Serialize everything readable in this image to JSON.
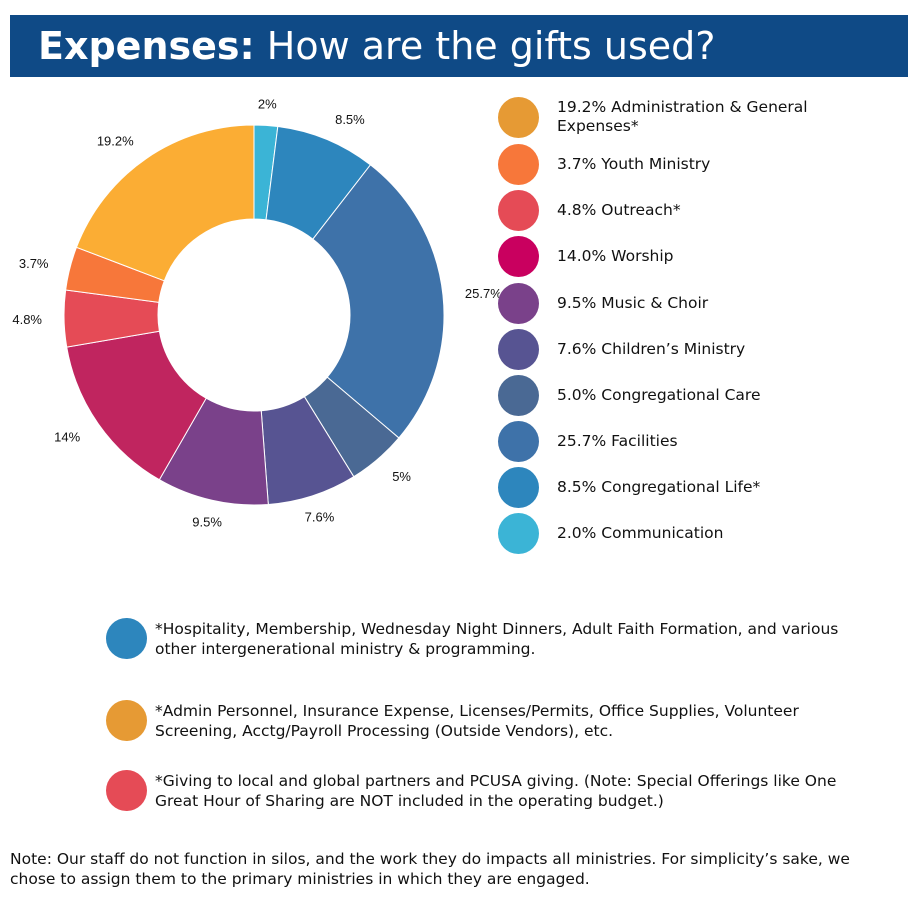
{
  "header": {
    "title_bold": "Expenses:",
    "title_rest": " How are the gifts used?",
    "background": "#0f4a86"
  },
  "chart_data": {
    "type": "pie",
    "donut": true,
    "start": "top",
    "direction": "clockwise",
    "slices": [
      {
        "label": "2.0% Communication",
        "value": 2.0,
        "data_label": "2%",
        "color": "#3bb4d6"
      },
      {
        "label": "8.5% Congregational Life*",
        "value": 8.5,
        "data_label": "8.5%",
        "color": "#2d86bd"
      },
      {
        "label": "25.7% Facilities",
        "value": 25.7,
        "data_label": "25.7%",
        "color": "#3e72a9"
      },
      {
        "label": "5.0% Congregational Care",
        "value": 5.0,
        "data_label": "5%",
        "color": "#4a6994"
      },
      {
        "label": "7.6% Children’s Ministry",
        "value": 7.6,
        "data_label": "7.6%",
        "color": "#575492"
      },
      {
        "label": "9.5% Music & Choir",
        "value": 9.5,
        "data_label": "9.5%",
        "color": "#7a418a"
      },
      {
        "label": "14.0% Worship",
        "value": 14.0,
        "data_label": "14%",
        "color": "#c0255f"
      },
      {
        "label": "4.8% Outreach*",
        "value": 4.8,
        "data_label": "4.8%",
        "color": "#e54b56"
      },
      {
        "label": "3.7% Youth Ministry",
        "value": 3.7,
        "data_label": "3.7%",
        "color": "#f7773a"
      },
      {
        "label": "19.2% Administration & General Expenses*",
        "value": 19.2,
        "data_label": "19.2%",
        "color": "#fbad34"
      }
    ]
  },
  "legend": [
    {
      "text": "19.2% Administration & General Expenses*",
      "color": "#e69a34"
    },
    {
      "text": "3.7% Youth Ministry",
      "color": "#f7773a"
    },
    {
      "text": "4.8% Outreach*",
      "color": "#e54b56"
    },
    {
      "text": "14.0% Worship",
      "color": "#c9005f"
    },
    {
      "text": "9.5% Music & Choir",
      "color": "#7a418a"
    },
    {
      "text": "7.6% Children’s Ministry",
      "color": "#575492"
    },
    {
      "text": "5.0% Congregational Care",
      "color": "#4a6994"
    },
    {
      "text": "25.7% Facilities",
      "color": "#3e72a9"
    },
    {
      "text": "8.5% Congregational Life*",
      "color": "#2d86bd"
    },
    {
      "text": "2.0% Communication",
      "color": "#3bb4d6"
    }
  ],
  "notes": [
    {
      "text": "*Hospitality, Membership, Wednesday Night Dinners, Adult Faith Formation, and various other intergenerational ministry & programming.",
      "color": "#2d86bd"
    },
    {
      "text": "*Admin Personnel, Insurance Expense, Licenses/Permits, Office Supplies, Volunteer Screening, Acctg/Payroll Processing (Outside Vendors), etc.",
      "color": "#e69a34"
    },
    {
      "text": "*Giving to local and global partners and PCUSA giving. (Note:  Special Offerings like One Great Hour of Sharing are NOT included in the operating budget.)",
      "color": "#e54b56"
    }
  ],
  "footer": "Note:  Our staff do not function in silos, and the work they do impacts all ministries. For simplicity’s sake, we chose to assign them to the primary ministries in which they are engaged."
}
